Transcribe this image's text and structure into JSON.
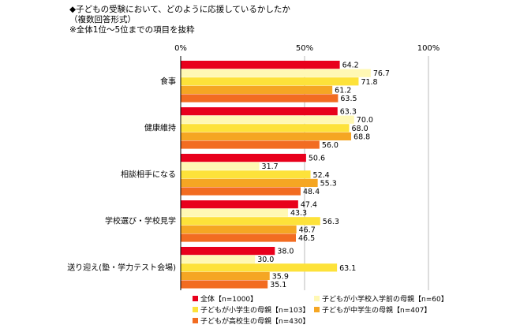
{
  "chart_data": {
    "type": "bar",
    "orientation": "horizontal",
    "title_lines": [
      "◆子どもの受験において、どのように応援しているかしたか",
      "（複数回答形式）",
      "※全体1位～5位までの項目を抜粋"
    ],
    "x_ticks": [
      "0%",
      "50%",
      "100%"
    ],
    "xlim": [
      0,
      100
    ],
    "categories": [
      "食事",
      "健康維持",
      "相談相手になる",
      "学校選び・学校見学",
      "送り迎え(塾・学力テスト会場)"
    ],
    "series": [
      {
        "name": "全体【n=1000】",
        "color": "#e8001c",
        "values": [
          64.2,
          63.3,
          50.6,
          47.4,
          38.0
        ]
      },
      {
        "name": "子どもが小学校入学前の母親【n=60】",
        "color": "#fff8b4",
        "values": [
          76.7,
          70.0,
          31.7,
          43.3,
          30.0
        ]
      },
      {
        "name": "子どもが小学生の母親【n=103】",
        "color": "#fde23a",
        "values": [
          71.8,
          68.0,
          52.4,
          56.3,
          63.1
        ]
      },
      {
        "name": "子どもが中学生の母親【n=407】",
        "color": "#f5a623",
        "values": [
          61.2,
          68.8,
          55.3,
          46.7,
          35.9
        ]
      },
      {
        "name": "子どもが高校生の母親【n=430】",
        "color": "#f26c21",
        "values": [
          63.5,
          56.0,
          48.4,
          46.5,
          35.1
        ]
      }
    ],
    "value_labels": [
      [
        "64.2",
        "63.3",
        "50.6",
        "47.4",
        "38.0"
      ],
      [
        "76.7",
        "70.0",
        "31.7",
        "43.3",
        "30.0"
      ],
      [
        "71.8",
        "68.0",
        "52.4",
        "56.3",
        "63.1"
      ],
      [
        "61.2",
        "68.8",
        "55.3",
        "46.7",
        "35.9"
      ],
      [
        "63.5",
        "56.0",
        "48.4",
        "46.5",
        "35.1"
      ]
    ],
    "legend_position": "bottom",
    "grid": true
  }
}
